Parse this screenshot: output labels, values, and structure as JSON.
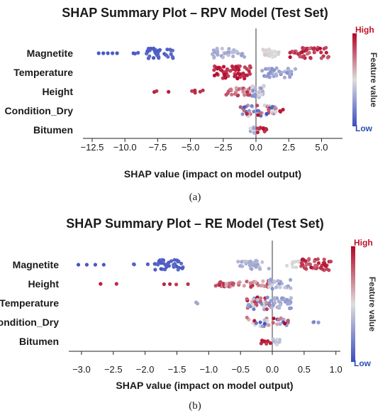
{
  "colors": {
    "low": "#3b4cc0",
    "mid": "#dddddd",
    "high": "#b40426",
    "zero_line": "#9a9a9a",
    "axis": "#222222",
    "cbar_label_high": "#c0142a",
    "cbar_label_low": "#2a4fb5"
  },
  "panels": [
    {
      "panel_label": "(a)",
      "colorbar": {
        "high_label": "High",
        "low_label": "Low",
        "title": "Feature value"
      }
    },
    {
      "panel_label": "(b)",
      "colorbar": {
        "high_label": "High",
        "low_label": "Low",
        "title": "Feature value"
      }
    }
  ],
  "chart_data": [
    {
      "type": "scatter",
      "subtype": "shap-beeswarm",
      "title": "SHAP Summary Plot – RPV Model (Test Set)",
      "xlabel": "SHAP value (impact on model output)",
      "xlim": [
        -13.2,
        6.6
      ],
      "xticks": [
        -12.5,
        -10.0,
        -7.5,
        -5.0,
        -2.5,
        0.0,
        2.5,
        5.0
      ],
      "tick_labels": [
        "−12.5",
        "−10.0",
        "−7.5",
        "−5.0",
        "−2.5",
        "0.0",
        "2.5",
        "5.0"
      ],
      "colorbar": {
        "high": "High",
        "low": "Low",
        "label": "Feature value"
      },
      "features": [
        {
          "name": "Magnetite",
          "groups": [
            {
              "from": -12.0,
              "to": -10.6,
              "n": 5,
              "f0": 0.02,
              "f1": 0.06,
              "spread": 0.0
            },
            {
              "from": -9.4,
              "to": -8.8,
              "n": 3,
              "f0": 0.04,
              "f1": 0.08,
              "spread": 0.1
            },
            {
              "from": -8.4,
              "to": -6.2,
              "n": 36,
              "f0": 0.04,
              "f1": 0.12,
              "spread": 0.8
            },
            {
              "from": -3.4,
              "to": -0.8,
              "n": 34,
              "f0": 0.28,
              "f1": 0.42,
              "spread": 0.75
            },
            {
              "from": 0.5,
              "to": 1.8,
              "n": 20,
              "f0": 0.47,
              "f1": 0.55,
              "spread": 0.65
            },
            {
              "from": 2.6,
              "to": 5.6,
              "n": 46,
              "f0": 0.76,
              "f1": 0.98,
              "spread": 0.9
            }
          ]
        },
        {
          "name": "Temperature",
          "groups": [
            {
              "from": -3.2,
              "to": -0.4,
              "n": 58,
              "f0": 0.84,
              "f1": 0.99,
              "spread": 1.0
            },
            {
              "from": 0.4,
              "to": 3.2,
              "n": 34,
              "f0": 0.22,
              "f1": 0.38,
              "spread": 0.85
            }
          ]
        },
        {
          "name": "Height",
          "groups": [
            {
              "from": -7.8,
              "to": -6.6,
              "n": 3,
              "f0": 0.9,
              "f1": 0.95,
              "spread": 0.1
            },
            {
              "from": -5.0,
              "to": -3.8,
              "n": 5,
              "f0": 0.86,
              "f1": 0.93,
              "spread": 0.2
            },
            {
              "from": -2.4,
              "to": -0.3,
              "n": 32,
              "f0": 0.6,
              "f1": 0.92,
              "spread": 0.65
            },
            {
              "from": -0.3,
              "to": 0.6,
              "n": 26,
              "f0": 0.22,
              "f1": 0.55,
              "spread": 0.9
            }
          ]
        },
        {
          "name": "Condition_Dry",
          "groups": [
            {
              "from": -1.2,
              "to": 1.6,
              "n": 48,
              "f0": 0.0,
              "f1": 1.0,
              "spread": 0.85
            },
            {
              "from": 1.6,
              "to": 2.1,
              "n": 3,
              "f0": 0.9,
              "f1": 0.97,
              "spread": 0.2
            }
          ]
        },
        {
          "name": "Bitumen",
          "groups": [
            {
              "from": -0.5,
              "to": 0.0,
              "n": 10,
              "f0": 0.3,
              "f1": 0.5,
              "spread": 0.5
            },
            {
              "from": 0.1,
              "to": 0.9,
              "n": 10,
              "f0": 0.88,
              "f1": 0.98,
              "spread": 0.4
            }
          ]
        }
      ]
    },
    {
      "type": "scatter",
      "subtype": "shap-beeswarm",
      "title": "SHAP Summary Plot – RE Model (Test Set)",
      "xlabel": "SHAP value (impact on model output)",
      "xlim": [
        -3.2,
        1.07
      ],
      "xticks": [
        -3.0,
        -2.5,
        -2.0,
        -1.5,
        -1.0,
        -0.5,
        0.0,
        0.5,
        1.0
      ],
      "tick_labels": [
        "−3.0",
        "−2.5",
        "−2.0",
        "−1.5",
        "−1.0",
        "−0.5",
        "0.0",
        "0.5",
        "1.0"
      ],
      "colorbar": {
        "high": "High",
        "low": "Low",
        "label": "Feature value"
      },
      "features": [
        {
          "name": "Magnetite",
          "groups": [
            {
              "from": -3.05,
              "to": -2.65,
              "n": 4,
              "f0": 0.02,
              "f1": 0.06,
              "spread": 0.0
            },
            {
              "from": -2.2,
              "to": -1.95,
              "n": 3,
              "f0": 0.04,
              "f1": 0.08,
              "spread": 0.1
            },
            {
              "from": -1.85,
              "to": -1.4,
              "n": 38,
              "f0": 0.04,
              "f1": 0.12,
              "spread": 0.8
            },
            {
              "from": -0.55,
              "to": -0.05,
              "n": 30,
              "f0": 0.28,
              "f1": 0.42,
              "spread": 0.7
            },
            {
              "from": 0.2,
              "to": 0.45,
              "n": 10,
              "f0": 0.47,
              "f1": 0.55,
              "spread": 0.6
            },
            {
              "from": 0.45,
              "to": 0.92,
              "n": 46,
              "f0": 0.76,
              "f1": 0.98,
              "spread": 0.9
            }
          ]
        },
        {
          "name": "Height",
          "groups": [
            {
              "from": -2.7,
              "to": -2.45,
              "n": 2,
              "f0": 0.9,
              "f1": 0.95,
              "spread": 0.0
            },
            {
              "from": -1.9,
              "to": -1.25,
              "n": 4,
              "f0": 0.86,
              "f1": 0.93,
              "spread": 0.1
            },
            {
              "from": -0.9,
              "to": 0.0,
              "n": 46,
              "f0": 0.6,
              "f1": 0.92,
              "spread": 0.5
            },
            {
              "from": -0.05,
              "to": 0.3,
              "n": 24,
              "f0": 0.22,
              "f1": 0.5,
              "spread": 0.9
            }
          ]
        },
        {
          "name": "Temperature",
          "groups": [
            {
              "from": -1.2,
              "to": -1.15,
              "n": 2,
              "f0": 0.3,
              "f1": 0.35,
              "spread": 0.1
            },
            {
              "from": -0.4,
              "to": 0.0,
              "n": 44,
              "f0": 0.0,
              "f1": 1.0,
              "spread": 1.0
            },
            {
              "from": 0.0,
              "to": 0.3,
              "n": 30,
              "f0": 0.25,
              "f1": 0.38,
              "spread": 0.85
            }
          ]
        },
        {
          "name": "Condition_Dry",
          "groups": [
            {
              "from": -0.4,
              "to": 0.25,
              "n": 34,
              "f0": 0.0,
              "f1": 1.0,
              "spread": 0.75
            },
            {
              "from": 0.5,
              "to": 0.75,
              "n": 3,
              "f0": 0.2,
              "f1": 0.3,
              "spread": 0.1
            }
          ]
        },
        {
          "name": "Bitumen",
          "groups": [
            {
              "from": -0.2,
              "to": 0.0,
              "n": 8,
              "f0": 0.85,
              "f1": 0.98,
              "spread": 0.4
            },
            {
              "from": 0.0,
              "to": 0.12,
              "n": 10,
              "f0": 0.3,
              "f1": 0.5,
              "spread": 0.5
            }
          ]
        }
      ]
    }
  ]
}
